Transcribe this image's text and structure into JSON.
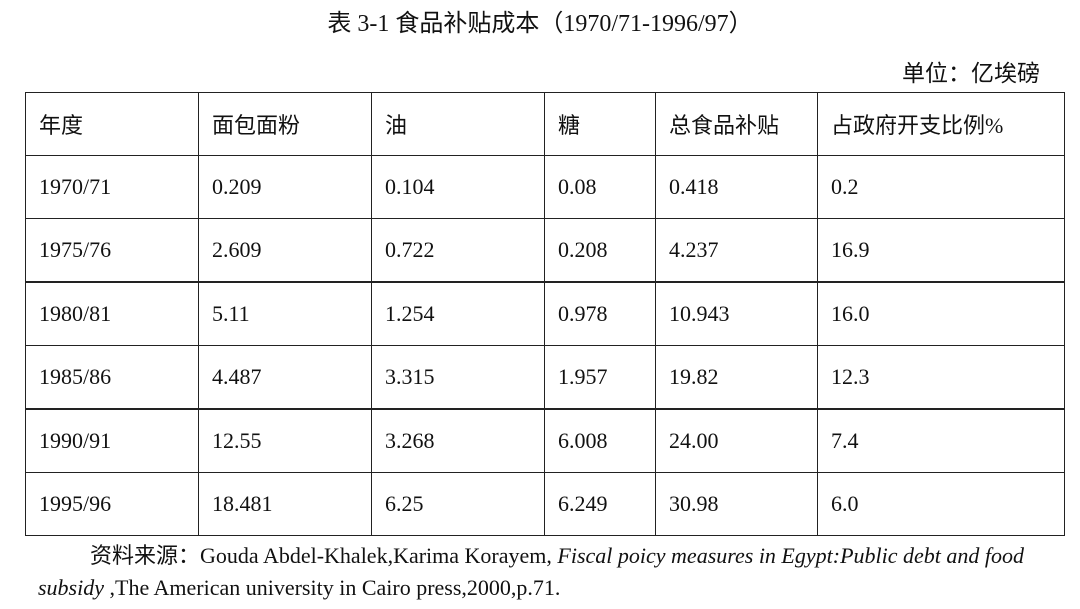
{
  "title": "表 3-1  食品补贴成本（1970/71-1996/97）",
  "unit": "单位：亿埃磅",
  "table": {
    "headers": [
      "年度",
      "面包面粉",
      "油",
      "糖",
      "总食品补贴",
      "占政府开支比例%"
    ],
    "rows": [
      [
        "1970/71",
        "0.209",
        "0.104",
        "0.08",
        "0.418",
        "0.2"
      ],
      [
        "1975/76",
        "2.609",
        "0.722",
        "0.208",
        "4.237",
        "16.9"
      ],
      [
        "1980/81",
        "5.11",
        "1.254",
        "0.978",
        "10.943",
        "16.0"
      ],
      [
        "1985/86",
        "4.487",
        "3.315",
        "1.957",
        "19.82",
        "12.3"
      ],
      [
        "1990/91",
        "12.55",
        "3.268",
        "6.008",
        "24.00",
        "7.4"
      ],
      [
        "1995/96",
        "18.481",
        "6.25",
        "6.249",
        "30.98",
        "6.0"
      ]
    ]
  },
  "source": {
    "label": "资料来源：",
    "authors": "Gouda Abdel-Khalek,Karima Korayem, ",
    "title_italic": "Fiscal poicy measures in Egypt:Public debt and food subsidy",
    "publisher": " ,The American university in Cairo press,2000,p.71."
  }
}
